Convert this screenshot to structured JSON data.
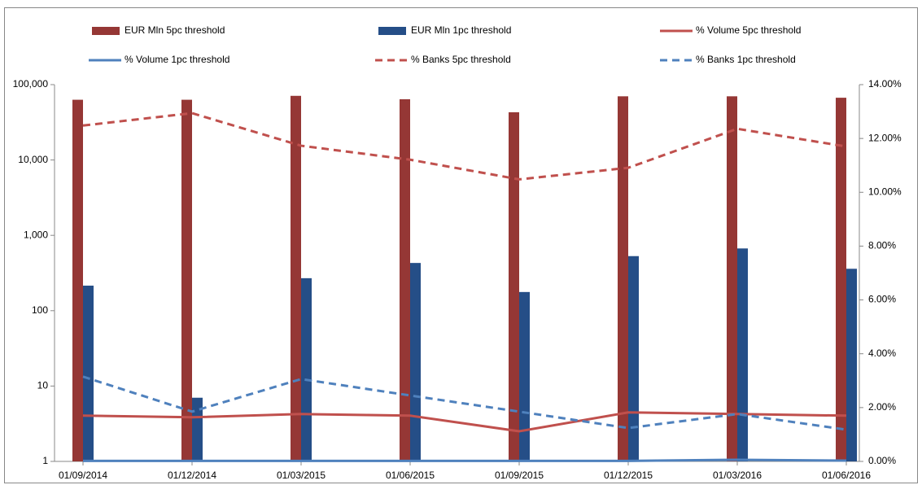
{
  "chart_data": {
    "type": "combo",
    "log_scale": true,
    "grid": false,
    "categories": [
      "01/09/2014",
      "01/12/2014",
      "01/03/2015",
      "01/06/2015",
      "01/09/2015",
      "01/12/2015",
      "01/03/2016",
      "01/06/2016"
    ],
    "ylim": [
      1,
      100000
    ],
    "yticks": [
      1,
      10,
      100,
      {
        "value": 1000,
        "label": "1,000"
      },
      {
        "value": 10000,
        "label": "10,000"
      },
      {
        "value": 100000,
        "label": "100,000"
      }
    ],
    "y2lim": [
      0,
      14
    ],
    "y2ticks": [
      {
        "value": 0,
        "label": "0.00%"
      },
      {
        "value": 2,
        "label": "2.00%"
      },
      {
        "value": 4,
        "label": "4.00%"
      },
      {
        "value": 6,
        "label": "6.00%"
      },
      {
        "value": 8,
        "label": "8.00%"
      },
      {
        "value": 10,
        "label": "10.00%"
      },
      {
        "value": 12,
        "label": "12.00%"
      },
      {
        "value": 14,
        "label": "14.00%"
      }
    ],
    "series": [
      {
        "name": "EUR Mln 5pc threshold",
        "type": "bar",
        "color": "#953735",
        "values": [
          63000,
          63000,
          71000,
          64000,
          43000,
          70000,
          70000,
          67000
        ]
      },
      {
        "name": "EUR Mln 1pc threshold",
        "type": "bar",
        "color": "#254e87",
        "values": [
          215,
          7,
          270,
          430,
          177,
          530,
          670,
          360
        ]
      },
      {
        "name": "% Volume 5pc threshold",
        "type": "line",
        "axis": "y2",
        "color": "#c0504d",
        "dashed": false,
        "values": [
          1.7,
          1.64,
          1.76,
          1.7,
          1.12,
          1.82,
          1.76,
          1.7
        ]
      },
      {
        "name": "% Volume 1pc threshold",
        "type": "line",
        "axis": "y2",
        "color": "#4f81bd",
        "dashed": false,
        "values": [
          0.02,
          0.02,
          0.02,
          0.02,
          0.02,
          0.02,
          0.06,
          0.03
        ]
      },
      {
        "name": "% Banks 5pc threshold",
        "type": "line",
        "axis": "y2",
        "color": "#c0504d",
        "dashed": true,
        "values": [
          12.48,
          12.94,
          11.73,
          11.21,
          10.48,
          10.91,
          12.36,
          11.7
        ]
      },
      {
        "name": "% Banks 1pc threshold",
        "type": "line",
        "axis": "y2",
        "color": "#4f81bd",
        "dashed": true,
        "values": [
          3.15,
          1.85,
          3.06,
          2.45,
          1.85,
          1.24,
          1.76,
          1.18
        ]
      }
    ]
  }
}
